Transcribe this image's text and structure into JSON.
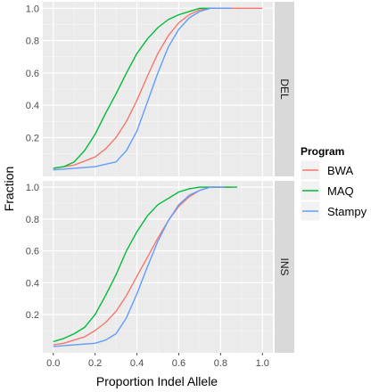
{
  "chart_data": {
    "type": "line",
    "xlabel": "Proportion Indel Allele",
    "ylabel": "Fraction",
    "xlim": [
      -0.05,
      1.05
    ],
    "ylim": [
      -0.04,
      1.04
    ],
    "x_ticks": [
      "0.0",
      "0.2",
      "0.4",
      "0.6",
      "0.8",
      "1.0"
    ],
    "x_tick_values": [
      0.0,
      0.2,
      0.4,
      0.6,
      0.8,
      1.0
    ],
    "y_ticks": [
      "0.2",
      "0.4",
      "0.6",
      "0.8",
      "1.0"
    ],
    "y_tick_values": [
      0.2,
      0.4,
      0.6,
      0.8,
      1.0
    ],
    "grid": true,
    "legend": {
      "title": "Program",
      "position": "right",
      "entries": [
        {
          "name": "BWA",
          "color": "#f8766d"
        },
        {
          "name": "MAQ",
          "color": "#00ba38"
        },
        {
          "name": "Stampy",
          "color": "#619cff"
        }
      ]
    },
    "panels": [
      {
        "label": "DEL",
        "series": [
          {
            "name": "BWA",
            "color": "#f8766d",
            "points": [
              [
                0.0,
                0.01
              ],
              [
                0.1,
                0.03
              ],
              [
                0.2,
                0.08
              ],
              [
                0.25,
                0.13
              ],
              [
                0.3,
                0.2
              ],
              [
                0.35,
                0.3
              ],
              [
                0.4,
                0.43
              ],
              [
                0.45,
                0.58
              ],
              [
                0.5,
                0.72
              ],
              [
                0.55,
                0.83
              ],
              [
                0.6,
                0.91
              ],
              [
                0.65,
                0.96
              ],
              [
                0.7,
                0.99
              ],
              [
                0.75,
                1.0
              ],
              [
                1.0,
                1.0
              ]
            ]
          },
          {
            "name": "MAQ",
            "color": "#00ba38",
            "points": [
              [
                0.0,
                0.01
              ],
              [
                0.05,
                0.02
              ],
              [
                0.1,
                0.05
              ],
              [
                0.15,
                0.12
              ],
              [
                0.2,
                0.22
              ],
              [
                0.25,
                0.35
              ],
              [
                0.3,
                0.47
              ],
              [
                0.35,
                0.6
              ],
              [
                0.4,
                0.72
              ],
              [
                0.45,
                0.81
              ],
              [
                0.5,
                0.88
              ],
              [
                0.55,
                0.93
              ],
              [
                0.6,
                0.96
              ],
              [
                0.65,
                0.98
              ],
              [
                0.7,
                1.0
              ],
              [
                0.78,
                1.0
              ]
            ]
          },
          {
            "name": "Stampy",
            "color": "#619cff",
            "points": [
              [
                0.0,
                0.0
              ],
              [
                0.1,
                0.01
              ],
              [
                0.2,
                0.02
              ],
              [
                0.3,
                0.05
              ],
              [
                0.35,
                0.12
              ],
              [
                0.4,
                0.24
              ],
              [
                0.45,
                0.42
              ],
              [
                0.5,
                0.6
              ],
              [
                0.55,
                0.76
              ],
              [
                0.6,
                0.87
              ],
              [
                0.65,
                0.94
              ],
              [
                0.7,
                0.98
              ],
              [
                0.75,
                1.0
              ],
              [
                0.85,
                1.0
              ]
            ]
          }
        ]
      },
      {
        "label": "INS",
        "series": [
          {
            "name": "BWA",
            "color": "#f8766d",
            "points": [
              [
                0.0,
                0.01
              ],
              [
                0.05,
                0.02
              ],
              [
                0.1,
                0.04
              ],
              [
                0.15,
                0.06
              ],
              [
                0.2,
                0.1
              ],
              [
                0.25,
                0.15
              ],
              [
                0.3,
                0.22
              ],
              [
                0.35,
                0.32
              ],
              [
                0.4,
                0.44
              ],
              [
                0.45,
                0.56
              ],
              [
                0.5,
                0.68
              ],
              [
                0.55,
                0.79
              ],
              [
                0.6,
                0.88
              ],
              [
                0.65,
                0.94
              ],
              [
                0.7,
                0.98
              ],
              [
                0.75,
                1.0
              ],
              [
                0.85,
                1.0
              ]
            ]
          },
          {
            "name": "MAQ",
            "color": "#00ba38",
            "points": [
              [
                0.0,
                0.03
              ],
              [
                0.05,
                0.05
              ],
              [
                0.1,
                0.08
              ],
              [
                0.15,
                0.12
              ],
              [
                0.2,
                0.2
              ],
              [
                0.25,
                0.32
              ],
              [
                0.3,
                0.45
              ],
              [
                0.35,
                0.6
              ],
              [
                0.4,
                0.72
              ],
              [
                0.45,
                0.82
              ],
              [
                0.5,
                0.89
              ],
              [
                0.55,
                0.93
              ],
              [
                0.6,
                0.97
              ],
              [
                0.65,
                0.99
              ],
              [
                0.7,
                1.0
              ],
              [
                0.88,
                1.0
              ]
            ]
          },
          {
            "name": "Stampy",
            "color": "#619cff",
            "points": [
              [
                0.0,
                0.0
              ],
              [
                0.1,
                0.01
              ],
              [
                0.2,
                0.02
              ],
              [
                0.25,
                0.04
              ],
              [
                0.3,
                0.08
              ],
              [
                0.35,
                0.18
              ],
              [
                0.4,
                0.33
              ],
              [
                0.45,
                0.5
              ],
              [
                0.5,
                0.66
              ],
              [
                0.55,
                0.79
              ],
              [
                0.6,
                0.89
              ],
              [
                0.65,
                0.95
              ],
              [
                0.7,
                0.98
              ],
              [
                0.75,
                1.0
              ],
              [
                0.82,
                1.0
              ]
            ]
          }
        ]
      }
    ]
  }
}
